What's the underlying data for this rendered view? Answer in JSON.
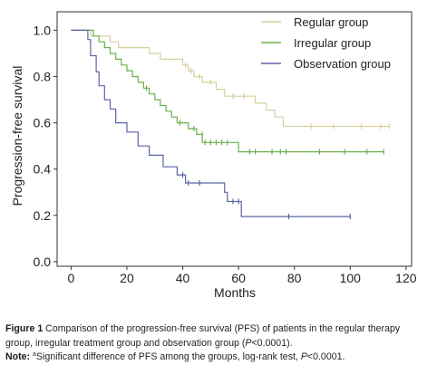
{
  "chart_data": {
    "type": "line",
    "ylabel": "Progression-free survival",
    "xlabel": "Months",
    "xlim": [
      -5,
      122
    ],
    "ylim": [
      -0.02,
      1.08
    ],
    "xticks": [
      0,
      20,
      40,
      60,
      80,
      100,
      120
    ],
    "yticks": [
      0.0,
      0.2,
      0.4,
      0.6,
      0.8,
      1.0
    ],
    "ytick_labels": [
      "0.0",
      "0.2",
      "0.4",
      "0.6",
      "0.8",
      "1.0"
    ],
    "grid": false,
    "legend_position": "top-right",
    "series": [
      {
        "name": "Regular group",
        "color": "#d6cf9e",
        "points": [
          [
            0,
            1.0
          ],
          [
            7,
            1.0
          ],
          [
            7,
            0.975
          ],
          [
            14,
            0.975
          ],
          [
            14,
            0.95
          ],
          [
            17,
            0.95
          ],
          [
            17,
            0.925
          ],
          [
            28,
            0.925
          ],
          [
            28,
            0.9
          ],
          [
            32,
            0.9
          ],
          [
            32,
            0.875
          ],
          [
            40,
            0.875
          ],
          [
            40,
            0.85
          ],
          [
            42,
            0.85
          ],
          [
            42,
            0.825
          ],
          [
            44,
            0.825
          ],
          [
            44,
            0.8
          ],
          [
            47,
            0.8
          ],
          [
            47,
            0.775
          ],
          [
            52,
            0.775
          ],
          [
            52,
            0.745
          ],
          [
            55,
            0.745
          ],
          [
            55,
            0.715
          ],
          [
            66,
            0.715
          ],
          [
            66,
            0.685
          ],
          [
            70,
            0.685
          ],
          [
            70,
            0.655
          ],
          [
            73,
            0.655
          ],
          [
            73,
            0.625
          ],
          [
            76,
            0.625
          ],
          [
            76,
            0.585
          ],
          [
            114,
            0.585
          ]
        ],
        "censor": [
          [
            41,
            0.85
          ],
          [
            43,
            0.825
          ],
          [
            46,
            0.8
          ],
          [
            50,
            0.775
          ],
          [
            58,
            0.715
          ],
          [
            62,
            0.715
          ],
          [
            86,
            0.585
          ],
          [
            94,
            0.585
          ],
          [
            104,
            0.585
          ],
          [
            111,
            0.585
          ],
          [
            114,
            0.585
          ]
        ]
      },
      {
        "name": "Irregular group",
        "color": "#6ab04c",
        "points": [
          [
            0,
            1.0
          ],
          [
            8,
            1.0
          ],
          [
            8,
            0.975
          ],
          [
            10,
            0.975
          ],
          [
            10,
            0.95
          ],
          [
            12,
            0.95
          ],
          [
            12,
            0.925
          ],
          [
            14,
            0.925
          ],
          [
            14,
            0.9
          ],
          [
            16,
            0.9
          ],
          [
            16,
            0.875
          ],
          [
            18,
            0.875
          ],
          [
            18,
            0.85
          ],
          [
            20,
            0.85
          ],
          [
            20,
            0.825
          ],
          [
            22,
            0.825
          ],
          [
            22,
            0.8
          ],
          [
            24,
            0.8
          ],
          [
            24,
            0.775
          ],
          [
            26,
            0.775
          ],
          [
            26,
            0.75
          ],
          [
            28,
            0.75
          ],
          [
            28,
            0.725
          ],
          [
            30,
            0.725
          ],
          [
            30,
            0.7
          ],
          [
            32,
            0.7
          ],
          [
            32,
            0.675
          ],
          [
            34,
            0.675
          ],
          [
            34,
            0.65
          ],
          [
            36,
            0.65
          ],
          [
            36,
            0.625
          ],
          [
            38,
            0.625
          ],
          [
            38,
            0.6
          ],
          [
            42,
            0.6
          ],
          [
            42,
            0.575
          ],
          [
            45,
            0.575
          ],
          [
            45,
            0.55
          ],
          [
            47,
            0.55
          ],
          [
            47,
            0.515
          ],
          [
            60,
            0.515
          ],
          [
            60,
            0.475
          ],
          [
            112,
            0.475
          ]
        ],
        "censor": [
          [
            27,
            0.75
          ],
          [
            39,
            0.6
          ],
          [
            44,
            0.575
          ],
          [
            47,
            0.55
          ],
          [
            48,
            0.515
          ],
          [
            50,
            0.515
          ],
          [
            52,
            0.515
          ],
          [
            54,
            0.515
          ],
          [
            56,
            0.515
          ],
          [
            64,
            0.475
          ],
          [
            66,
            0.475
          ],
          [
            72,
            0.475
          ],
          [
            75,
            0.475
          ],
          [
            77,
            0.475
          ],
          [
            89,
            0.475
          ],
          [
            98,
            0.475
          ],
          [
            106,
            0.475
          ],
          [
            112,
            0.475
          ]
        ]
      },
      {
        "name": "Observation group",
        "color": "#5b64a8",
        "points": [
          [
            0,
            1.0
          ],
          [
            6,
            1.0
          ],
          [
            6,
            0.96
          ],
          [
            7,
            0.96
          ],
          [
            7,
            0.89
          ],
          [
            9,
            0.89
          ],
          [
            9,
            0.82
          ],
          [
            10,
            0.82
          ],
          [
            10,
            0.76
          ],
          [
            12,
            0.76
          ],
          [
            12,
            0.7
          ],
          [
            14,
            0.7
          ],
          [
            14,
            0.66
          ],
          [
            16,
            0.66
          ],
          [
            16,
            0.6
          ],
          [
            20,
            0.6
          ],
          [
            20,
            0.56
          ],
          [
            24,
            0.56
          ],
          [
            24,
            0.5
          ],
          [
            28,
            0.5
          ],
          [
            28,
            0.46
          ],
          [
            33,
            0.46
          ],
          [
            33,
            0.41
          ],
          [
            38,
            0.41
          ],
          [
            38,
            0.375
          ],
          [
            41,
            0.375
          ],
          [
            41,
            0.34
          ],
          [
            55,
            0.34
          ],
          [
            55,
            0.3
          ],
          [
            56,
            0.3
          ],
          [
            56,
            0.26
          ],
          [
            61,
            0.26
          ],
          [
            61,
            0.195
          ],
          [
            100,
            0.195
          ]
        ],
        "censor": [
          [
            40,
            0.375
          ],
          [
            42,
            0.34
          ],
          [
            46,
            0.34
          ],
          [
            58,
            0.26
          ],
          [
            60,
            0.26
          ],
          [
            78,
            0.195
          ],
          [
            100,
            0.195
          ]
        ]
      }
    ]
  },
  "caption": {
    "figure_label": "Figure 1",
    "figure_text": "Comparison of the progression-free survival (PFS) of patients in the regular therapy group, irregular treatment group and observation group (",
    "p_symbol": "P",
    "p_value": "<0.0001).",
    "note_label": "Note:",
    "note_sup": "a",
    "note_text": "Significant difference of PFS among the groups, log-rank test, ",
    "note_p": "P",
    "note_value": "<0.0001."
  }
}
